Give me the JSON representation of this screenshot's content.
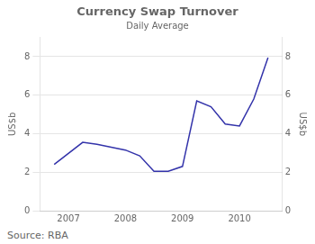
{
  "chart_data": {
    "type": "line",
    "title": "Currency Swap Turnover",
    "subtitle": "Daily Average",
    "ylabel": "US$b",
    "y2label": "US$b",
    "annotations": [
      "Source: RBA"
    ],
    "x": [
      2006.75,
      2007.25,
      2007.5,
      2007.75,
      2008.0,
      2008.25,
      2008.5,
      2008.75,
      2009.0,
      2009.25,
      2009.5,
      2009.75,
      2010.0,
      2010.25,
      2010.5
    ],
    "values": [
      2.4,
      3.55,
      3.45,
      3.3,
      3.15,
      2.85,
      2.05,
      2.05,
      2.3,
      5.7,
      5.4,
      4.5,
      4.4,
      5.8,
      7.95
    ],
    "color": "#3333aa",
    "xlim": [
      2006.5,
      2010.75
    ],
    "xticks": [
      2007,
      2008,
      2009,
      2010
    ],
    "ylim": [
      0,
      9
    ],
    "yticks": [
      0,
      2,
      4,
      6,
      8
    ],
    "y2lim": [
      0,
      9
    ],
    "y2ticks": [
      0,
      2,
      4,
      6,
      8
    ],
    "grid": "y"
  }
}
